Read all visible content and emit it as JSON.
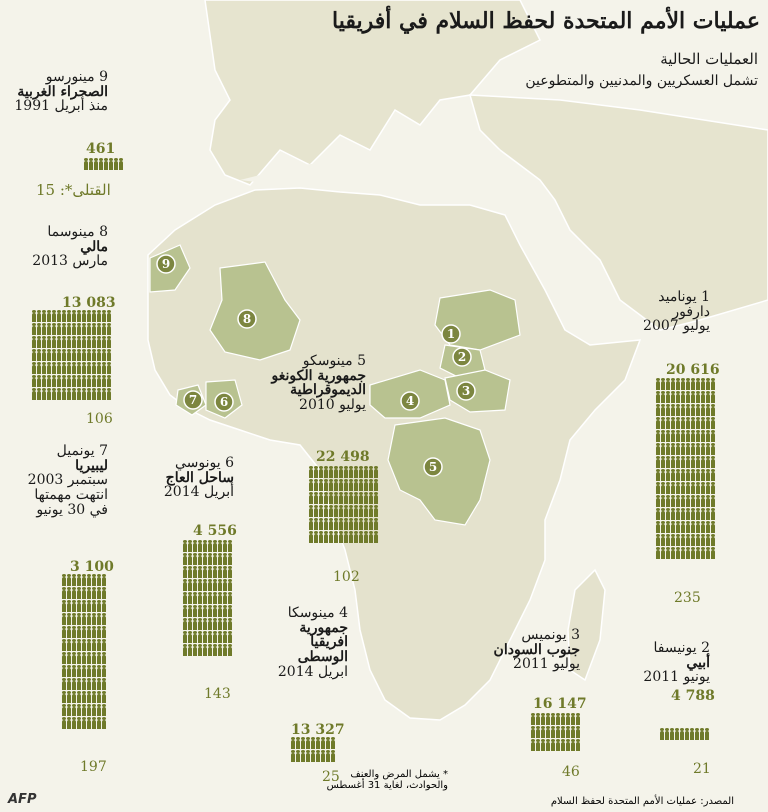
{
  "title": "عمليات الأمم المتحدة لحفظ السلام في أفريقيا",
  "subtitle": "العمليات الحالية",
  "subtitle2": "تشمل العسكريين والمدنيين والمتطوعين",
  "colors": {
    "accent": "#6f7a2a",
    "land": "#e4e2cd",
    "mission": "#b8c290",
    "sea": "#f4f3ea"
  },
  "missions": [
    {
      "num": "1",
      "code": "يوناميد",
      "place": "دارفور",
      "date": "يوليو 2007",
      "personnel": "20 616",
      "deaths": "235"
    },
    {
      "num": "2",
      "code": "يونيسفا",
      "place": "أبيي",
      "date": "يونيو 2011",
      "personnel": "4 788",
      "deaths": "21"
    },
    {
      "num": "3",
      "code": "يونميس",
      "place": "جنوب السودان",
      "date": "يوليو 2011",
      "personnel": "16 147",
      "deaths": "46"
    },
    {
      "num": "4",
      "code": "مينوسكا",
      "place": "جمهورية افريقيا الوسطى",
      "place_lines": [
        "جمهورية",
        "افريقيا",
        "الوسطى"
      ],
      "date": "ابريل 2014",
      "personnel": "13 327",
      "deaths": "25"
    },
    {
      "num": "5",
      "code": "مينوسكو",
      "place": "جمهورية الكونغو الديموقراطية",
      "place_lines": [
        "جمهورية الكونغو",
        "الديموقراطية"
      ],
      "date": "يوليو 2010",
      "personnel": "22 498",
      "deaths": "102"
    },
    {
      "num": "6",
      "code": "يونوسي",
      "place": "ساحل العاج",
      "date": "أبريل 2014",
      "personnel": "4 556",
      "deaths": "143"
    },
    {
      "num": "7",
      "code": "يونميل",
      "place": "ليبيريا",
      "date": "سبتمبر 2003",
      "date_lines": [
        "سبتمبر 2003",
        "انتهت مهمتها",
        "في 30 يونيو"
      ],
      "personnel": "3 100",
      "deaths": "197"
    },
    {
      "num": "8",
      "code": "مينوسما",
      "place": "مالي",
      "date": "مارس 2013",
      "personnel": "13 083",
      "deaths": "106"
    },
    {
      "num": "9",
      "code": "مينورسو",
      "place": "الصحراء الغربية",
      "date": "منذ أبريل 1991",
      "personnel": "461",
      "deaths": "15",
      "deaths_label": "القتلى*: 15"
    }
  ],
  "footnote": [
    "* يشمل المرض والعنف",
    "والحوادث، لغاية 31 أغسطس"
  ],
  "source": "المصدر: عمليات الأمم المتحدة لحفظ السلام",
  "logo": "AFP"
}
